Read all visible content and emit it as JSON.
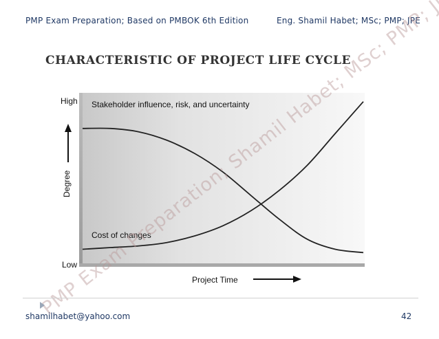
{
  "header": {
    "left_text": "PMP Exam Preparation; Based on PMBOK 6th Edition",
    "right_text": "Eng. Shamil Habet; MSc; PMP; JPE"
  },
  "slide": {
    "title": "CHARACTERISTIC OF PROJECT LIFE CYCLE",
    "watermark": "PMP Exam Preparation; Shamil Habet; MSc; PMP; JPE"
  },
  "footer": {
    "email": "shamilhabet@yahoo.com",
    "page_number": "42"
  },
  "colors": {
    "header_text": "#1f3864",
    "title_text": "#333333",
    "curve": "#222222",
    "plot_background_left": "#c8c8c8",
    "plot_background_right": "#f8f8f8"
  },
  "chart_data": {
    "type": "line",
    "xlabel": "Project Time",
    "ylabel": "Degree",
    "y_tick_labels": {
      "high": "High",
      "low": "Low"
    },
    "xlim": [
      0,
      1
    ],
    "ylim": [
      0,
      1
    ],
    "grid": false,
    "series": [
      {
        "name": "Stakeholder influence, risk, and uncertainty",
        "x": [
          0.0,
          0.1,
          0.2,
          0.3,
          0.4,
          0.5,
          0.6,
          0.7,
          0.8,
          0.9,
          1.0
        ],
        "y": [
          0.8,
          0.8,
          0.78,
          0.73,
          0.65,
          0.54,
          0.4,
          0.26,
          0.14,
          0.08,
          0.06
        ]
      },
      {
        "name": "Cost of changes",
        "x": [
          0.0,
          0.1,
          0.2,
          0.3,
          0.4,
          0.5,
          0.6,
          0.7,
          0.8,
          0.9,
          1.0
        ],
        "y": [
          0.08,
          0.09,
          0.1,
          0.12,
          0.16,
          0.22,
          0.31,
          0.43,
          0.58,
          0.77,
          0.96
        ]
      }
    ]
  }
}
